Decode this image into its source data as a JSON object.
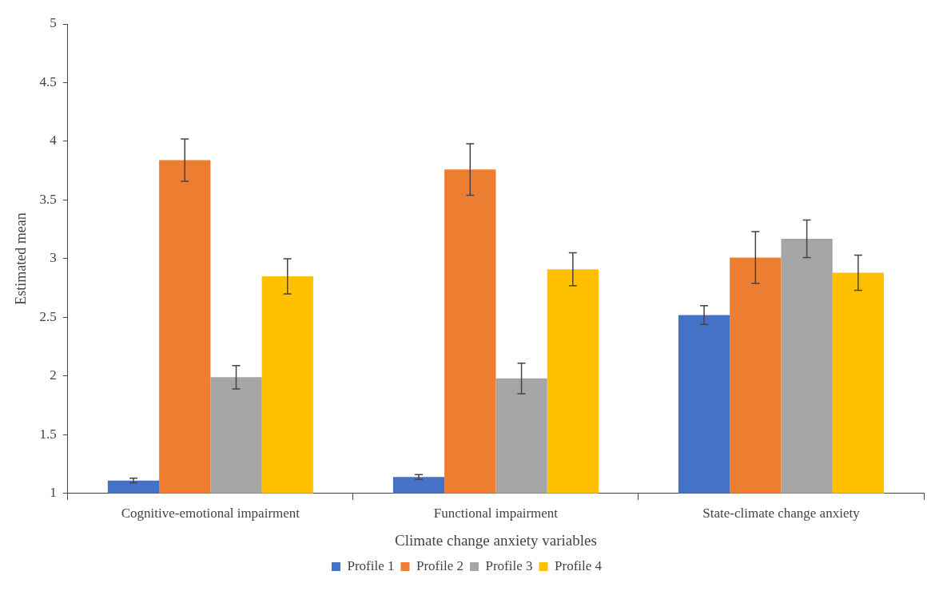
{
  "chart_data": {
    "type": "bar",
    "xlabel": "Climate change anxiety variables",
    "ylabel": "Estimated mean",
    "categories": [
      "Cognitive-emotional impairment",
      "Functional impairment",
      "State-climate change anxiety"
    ],
    "series": [
      {
        "name": "Profile 1",
        "color": "#4472c4",
        "values": [
          1.11,
          1.14,
          2.52
        ],
        "errors": [
          0.02,
          0.02,
          0.08
        ]
      },
      {
        "name": "Profile 2",
        "color": "#ed7d31",
        "values": [
          3.84,
          3.76,
          3.01
        ],
        "errors": [
          0.18,
          0.22,
          0.22
        ]
      },
      {
        "name": "Profile 3",
        "color": "#a5a5a5",
        "values": [
          1.99,
          1.98,
          3.17
        ],
        "errors": [
          0.1,
          0.13,
          0.16
        ]
      },
      {
        "name": "Profile 4",
        "color": "#ffc000",
        "values": [
          2.85,
          2.91,
          2.88
        ],
        "errors": [
          0.15,
          0.14,
          0.15
        ]
      }
    ],
    "ylim": [
      1,
      5
    ],
    "yticks": [
      1,
      1.5,
      2,
      2.5,
      3,
      3.5,
      4,
      4.5,
      5
    ],
    "grid": false,
    "legend": "bottom"
  }
}
